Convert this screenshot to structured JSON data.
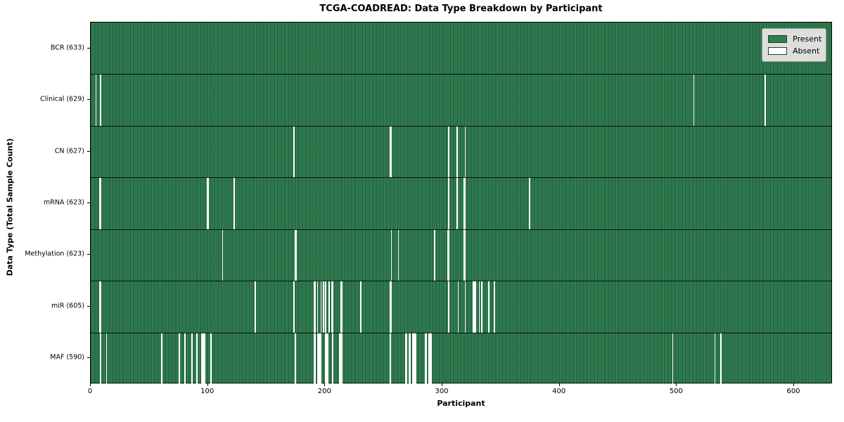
{
  "chart_data": {
    "type": "heatmap",
    "title": "TCGA-COADREAD: Data Type Breakdown by Participant",
    "xlabel": "Participant",
    "ylabel": "Data Type (Total Sample Count)",
    "n_participants": 633,
    "x_ticks": [
      0,
      100,
      200,
      300,
      400,
      500,
      600
    ],
    "xlim": [
      0,
      633
    ],
    "grid": false,
    "legend_position": "upper right",
    "colors": {
      "present": "#2f7e50",
      "absent": "#ffffff",
      "edge": "#082215"
    },
    "legend": [
      {
        "label": "Present",
        "color": "#2f7e50"
      },
      {
        "label": "Absent",
        "color": "#ffffff"
      }
    ],
    "rows": [
      {
        "label": "BCR",
        "total": 633,
        "tick_label": "BCR (633)",
        "absent": []
      },
      {
        "label": "Clinical",
        "total": 629,
        "tick_label": "Clinical (629)",
        "absent": [
          4,
          8,
          514,
          575
        ]
      },
      {
        "label": "CN",
        "total": 627,
        "tick_label": "CN (627)",
        "absent": [
          173,
          255,
          256,
          305,
          312,
          319
        ]
      },
      {
        "label": "mRNA",
        "total": 623,
        "tick_label": "mRNA (623)",
        "absent": [
          7,
          8,
          99,
          100,
          122,
          305,
          312,
          318,
          319,
          374
        ]
      },
      {
        "label": "Methylation",
        "total": 623,
        "tick_label": "Methylation (623)",
        "absent": [
          112,
          174,
          175,
          256,
          262,
          293,
          304,
          305,
          318,
          319
        ]
      },
      {
        "label": "miR",
        "total": 605,
        "tick_label": "miR (605)",
        "absent": [
          7,
          8,
          140,
          173,
          190,
          191,
          193,
          196,
          198,
          200,
          203,
          205,
          206,
          213,
          214,
          230,
          255,
          256,
          305,
          313,
          319,
          326,
          327,
          328,
          331,
          333,
          339,
          344
        ]
      },
      {
        "label": "MAF",
        "total": 590,
        "tick_label": "MAF (590)",
        "absent": [
          8,
          13,
          60,
          75,
          80,
          86,
          90,
          94,
          95,
          96,
          97,
          102,
          174,
          190,
          191,
          193,
          194,
          195,
          196,
          200,
          201,
          202,
          206,
          212,
          213,
          214,
          255,
          268,
          269,
          271,
          272,
          274,
          275,
          276,
          277,
          285,
          286,
          288,
          289,
          290,
          496,
          532,
          537
        ]
      }
    ]
  }
}
